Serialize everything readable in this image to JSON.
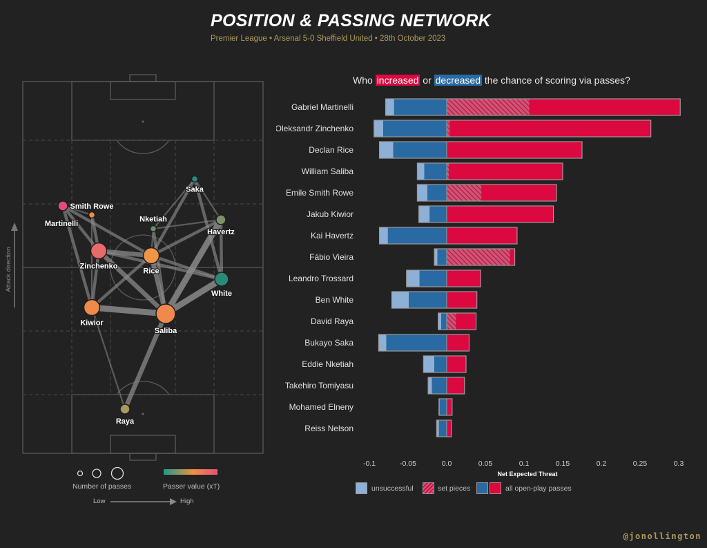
{
  "header": {
    "title": "POSITION & PASSING NETWORK",
    "subtitle": "Premier League • Arsenal 5-0 Sheffield United • 28th October 2023"
  },
  "question": {
    "prefix": "Who ",
    "increased": "increased",
    "middle": " or ",
    "decreased": "decreased",
    "suffix": " the chance of scoring via passes?"
  },
  "colors": {
    "increase": "#dc0840",
    "decrease": "#2a6aa3",
    "unsuccessful": "#8fb0d6",
    "background": "#222222",
    "accent_gold": "#b09a5c"
  },
  "pitch": {
    "attack_direction_label": "Attack direction",
    "legend": {
      "size_label": "Number of passes",
      "color_label": "Passer value (xT)",
      "low_label": "Low",
      "high_label": "High",
      "color_scale": [
        "#1f9a8f",
        "#f09040",
        "#e8507a"
      ]
    },
    "nodes": [
      {
        "name": "Martinelli",
        "passes": "low",
        "xt_color": "#e04d7a"
      },
      {
        "name": "Smith Rowe",
        "passes": "very low",
        "xt_color": "#ef8c45"
      },
      {
        "name": "Nketiah",
        "passes": "very low",
        "xt_color": "#6a8f6a"
      },
      {
        "name": "Saka",
        "passes": "very low",
        "xt_color": "#1f8f8a"
      },
      {
        "name": "Havertz",
        "passes": "low",
        "xt_color": "#7e9068"
      },
      {
        "name": "Zinchenko",
        "passes": "high",
        "xt_color": "#e86a6a"
      },
      {
        "name": "Rice",
        "passes": "high",
        "xt_color": "#ef9545"
      },
      {
        "name": "White",
        "passes": "medium",
        "xt_color": "#2a8a78"
      },
      {
        "name": "Kiwior",
        "passes": "high",
        "xt_color": "#ef8a48"
      },
      {
        "name": "Saliba",
        "passes": "very high",
        "xt_color": "#ef8a4c"
      },
      {
        "name": "Raya",
        "passes": "low",
        "xt_color": "#a99a60"
      }
    ],
    "edges": [
      {
        "from": "Raya",
        "to": "Saliba",
        "weight": 3
      },
      {
        "from": "Kiwior",
        "to": "Saliba",
        "weight": 4
      },
      {
        "from": "Saliba",
        "to": "White",
        "weight": 4
      },
      {
        "from": "Saliba",
        "to": "Havertz",
        "weight": 4
      },
      {
        "from": "Saliba",
        "to": "Rice",
        "weight": 3
      },
      {
        "from": "Saliba",
        "to": "Zinchenko",
        "weight": 3
      },
      {
        "from": "Saliba",
        "to": "Nketiah",
        "weight": 2
      },
      {
        "from": "Zinchenko",
        "to": "Rice",
        "weight": 3
      },
      {
        "from": "Zinchenko",
        "to": "Kiwior",
        "weight": 2
      },
      {
        "from": "Zinchenko",
        "to": "Smith Rowe",
        "weight": 2
      },
      {
        "from": "Zinchenko",
        "to": "Martinelli",
        "weight": 2
      },
      {
        "from": "Zinchenko",
        "to": "White",
        "weight": 2
      },
      {
        "from": "Kiwior",
        "to": "Martinelli",
        "weight": 2
      },
      {
        "from": "Kiwior",
        "to": "Rice",
        "weight": 2
      },
      {
        "from": "Kiwior",
        "to": "Smith Rowe",
        "weight": 1
      },
      {
        "from": "Martinelli",
        "to": "Rice",
        "weight": 2
      },
      {
        "from": "Martinelli",
        "to": "Smith Rowe",
        "weight": 1
      },
      {
        "from": "Rice",
        "to": "White",
        "weight": 2
      },
      {
        "from": "Rice",
        "to": "Havertz",
        "weight": 2
      },
      {
        "from": "Rice",
        "to": "Nketiah",
        "weight": 1
      },
      {
        "from": "Havertz",
        "to": "White",
        "weight": 2
      },
      {
        "from": "Havertz",
        "to": "Saka",
        "weight": 1
      },
      {
        "from": "Saka",
        "to": "White",
        "weight": 2
      },
      {
        "from": "Saka",
        "to": "Rice",
        "weight": 2
      },
      {
        "from": "Nketiah",
        "to": "Havertz",
        "weight": 1
      },
      {
        "from": "Nketiah",
        "to": "Saka",
        "weight": 1
      },
      {
        "from": "Kiwior",
        "to": "Raya",
        "weight": 1
      }
    ]
  },
  "chart_data": {
    "type": "bar",
    "orientation": "horizontal",
    "title": "Who increased or decreased the chance of scoring via passes?",
    "xlabel": "Net Expected Threat",
    "ylabel": "",
    "xlim": [
      -0.1,
      0.3
    ],
    "xticks": [
      -0.1,
      -0.05,
      0.0,
      0.05,
      0.1,
      0.15,
      0.2,
      0.25,
      0.3
    ],
    "xtick_labels": [
      "-0.1",
      "-0.05",
      "0.0",
      "0.05",
      "0.1",
      "0.15",
      "0.2",
      "0.25",
      "0.3"
    ],
    "grid": false,
    "legend": {
      "placement": "bottom",
      "items": [
        {
          "label": "unsuccessful",
          "style": "unsuccessful"
        },
        {
          "label": "set pieces",
          "style": "set-pieces"
        },
        {
          "label": "all open-play passes",
          "style": "open-play"
        }
      ]
    },
    "categories": [
      "Gabriel Martinelli",
      "Oleksandr Zinchenko",
      "Declan Rice",
      "William Saliba",
      "Emile Smith Rowe",
      "Jakub Kiwior",
      "Kai Havertz",
      "Fábio Vieira",
      "Leandro Trossard",
      "Ben White",
      "David Raya",
      "Bukayo Saka",
      "Eddie Nketiah",
      "Takehiro Tomiyasu",
      "Mohamed Elneny",
      "Reiss Nelson"
    ],
    "series": [
      {
        "name": "negative total (incl. unsuccessful)",
        "values": [
          -0.079,
          -0.094,
          -0.087,
          -0.038,
          -0.038,
          -0.036,
          -0.087,
          -0.016,
          -0.052,
          -0.071,
          -0.011,
          -0.088,
          -0.03,
          -0.024,
          -0.01,
          -0.013
        ]
      },
      {
        "name": "negative excl. unsuccessful",
        "values": [
          -0.068,
          -0.082,
          -0.069,
          -0.029,
          -0.025,
          -0.022,
          -0.076,
          -0.012,
          -0.035,
          -0.049,
          -0.007,
          -0.078,
          -0.016,
          -0.019,
          -0.009,
          -0.01
        ]
      },
      {
        "name": "set pieces (positive)",
        "values": [
          0.107,
          0.004,
          0.0,
          0.003,
          0.045,
          0.0,
          0.0,
          0.082,
          0.0,
          0.0,
          0.012,
          0.0,
          0.0,
          0.0,
          0.0,
          0.0
        ]
      },
      {
        "name": "positive total",
        "values": [
          0.302,
          0.264,
          0.175,
          0.15,
          0.142,
          0.138,
          0.091,
          0.088,
          0.044,
          0.039,
          0.038,
          0.029,
          0.025,
          0.023,
          0.007,
          0.006
        ]
      }
    ]
  },
  "footer": {
    "handle": "@jonollington"
  }
}
